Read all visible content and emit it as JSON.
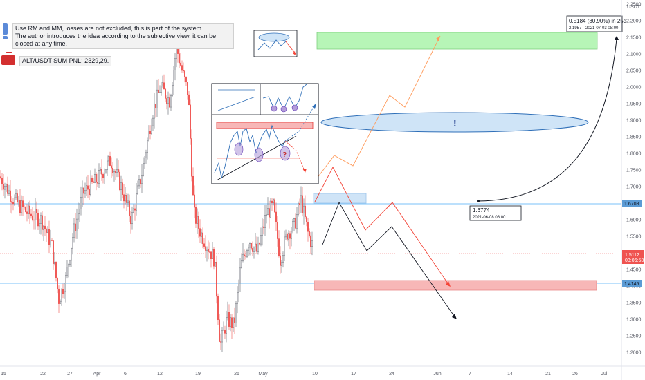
{
  "notes": {
    "line1": "Use RM and MM, losses are not excluded, this is part of the system.",
    "line2": "The author introduces the idea according to the subjective view, it can be closed at any time.",
    "pnl": "ALT/USDT SUM PNL: 2329,29."
  },
  "colors": {
    "up": "#26a69a",
    "down": "#ef5350",
    "candle_up_body": "#ffffff",
    "candle_border": "#5d606b",
    "support_line": "#2196f3",
    "green_zone": "#b7f5b7",
    "red_zone": "#f7b7b7",
    "blue_zone": "#cfe4f7",
    "orange_path": "#ff9a5a",
    "red_path": "#f44336",
    "black_path": "#131722"
  },
  "chart_data": {
    "type": "candlestick",
    "y_axis_label": "USDT",
    "ylim": [
      1.15,
      2.25
    ],
    "y_ticks": [
      "2.2500",
      "2.2000",
      "2.1500",
      "2.1000",
      "2.0500",
      "2.0000",
      "1.9500",
      "1.9000",
      "1.8500",
      "1.8000",
      "1.7500",
      "1.7000",
      "1.6500",
      "1.6000",
      "1.5500",
      "1.5000",
      "1.4500",
      "1.4000",
      "1.3500",
      "1.3000",
      "1.2500",
      "1.2000"
    ],
    "x_ticks": [
      "15",
      "22",
      "27",
      "Apr",
      "6",
      "12",
      "19",
      "26",
      "May",
      "10",
      "17",
      "24",
      "Jun",
      "7",
      "14",
      "21",
      "26",
      "Jul"
    ],
    "last_price": "1.5112",
    "countdown": "03:06:53",
    "level_upper": "1.6708",
    "level_lower": "1.4145",
    "measure": {
      "start_value": "1.6774",
      "start_date": "2021-06-08 08:00",
      "change": "0.5184 (30.90%) in 25d",
      "end_value": "2.1957",
      "end_date": "2021-07-03  08:00"
    },
    "zones": [
      {
        "name": "target-zone",
        "low": 2.165,
        "high": 2.205
      },
      {
        "name": "buy-zone",
        "low": 1.665,
        "high": 1.695
      },
      {
        "name": "stop-zone",
        "low": 1.398,
        "high": 1.423
      }
    ],
    "ellipse_label": "!",
    "inset_question": "?"
  }
}
